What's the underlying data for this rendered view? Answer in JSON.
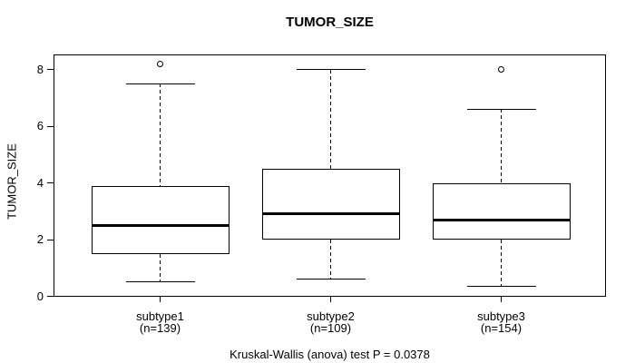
{
  "chart_data": {
    "type": "boxplot",
    "title": "TUMOR_SIZE",
    "ylabel": "TUMOR_SIZE",
    "xlabel": "",
    "annotation": "Kruskal-Wallis (anova) test P = 0.0378",
    "test_p_value": 0.0378,
    "ylim": [
      0,
      8.5
    ],
    "yticks": [
      0,
      2,
      4,
      6,
      8
    ],
    "grid": false,
    "line_color": "#000000",
    "background_color": "#ffffff",
    "groups": [
      {
        "label": "subtype1",
        "sublabel": "(n=139)",
        "n": 139,
        "whisker_low": 0.5,
        "q1": 1.5,
        "median": 2.5,
        "q3": 3.9,
        "whisker_high": 7.5,
        "outliers": [
          8.2
        ]
      },
      {
        "label": "subtype2",
        "sublabel": "(n=109)",
        "n": 109,
        "whisker_low": 0.6,
        "q1": 2.0,
        "median": 2.9,
        "q3": 4.5,
        "whisker_high": 8.0,
        "outliers": []
      },
      {
        "label": "subtype3",
        "sublabel": "(n=154)",
        "n": 154,
        "whisker_low": 0.35,
        "q1": 2.0,
        "median": 2.7,
        "q3": 4.0,
        "whisker_high": 6.6,
        "outliers": [
          8.0
        ]
      }
    ]
  }
}
